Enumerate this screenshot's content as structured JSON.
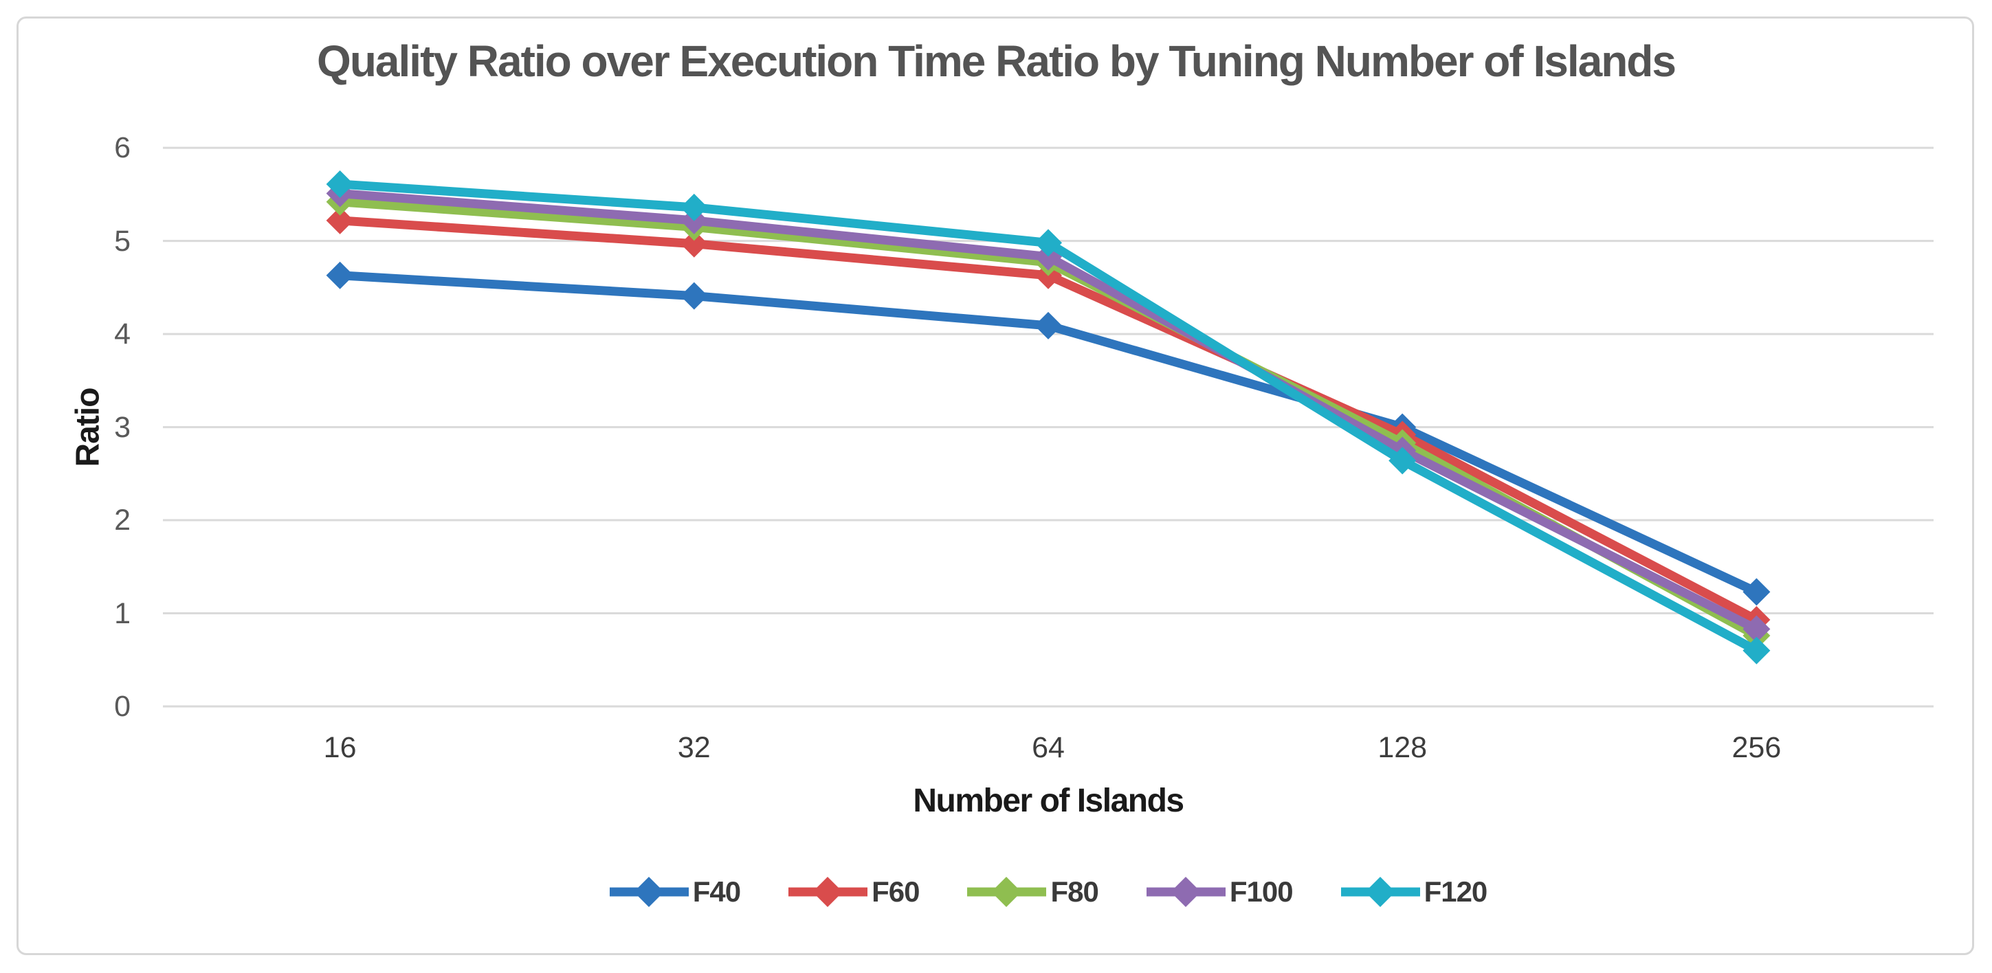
{
  "chart_data": {
    "type": "line",
    "title": "Quality Ratio over Execution Time Ratio by Tuning Number of Islands",
    "xlabel": "Number of Islands",
    "ylabel": "Ratio",
    "categories": [
      "16",
      "32",
      "64",
      "128",
      "256"
    ],
    "y_ticks": [
      6,
      5,
      4,
      3,
      2,
      1,
      0
    ],
    "ylim": [
      0,
      6
    ],
    "grid": true,
    "legend_position": "bottom",
    "series": [
      {
        "name": "F40",
        "color": "#2E75BD",
        "values": [
          4.63,
          4.41,
          4.09,
          3.0,
          1.23
        ]
      },
      {
        "name": "F60",
        "color": "#D94C4C",
        "values": [
          5.22,
          4.97,
          4.63,
          2.92,
          0.93
        ]
      },
      {
        "name": "F80",
        "color": "#8FBE50",
        "values": [
          5.42,
          5.15,
          4.77,
          2.83,
          0.76
        ]
      },
      {
        "name": "F100",
        "color": "#8E6BB1",
        "values": [
          5.51,
          5.22,
          4.83,
          2.75,
          0.83
        ]
      },
      {
        "name": "F120",
        "color": "#21AEC8",
        "values": [
          5.61,
          5.36,
          4.98,
          2.64,
          0.6
        ]
      }
    ]
  },
  "styles": {
    "grid_color": "#DADADA",
    "frame_border_color": "#D7D7D7",
    "title_color": "#545454",
    "ytick_color": "#595959",
    "xtick_color": "#3D3D3D",
    "axis_title_color": "#1A1A1A",
    "legend_text_color": "#3A3A3A",
    "background": "#FFFFFF"
  }
}
